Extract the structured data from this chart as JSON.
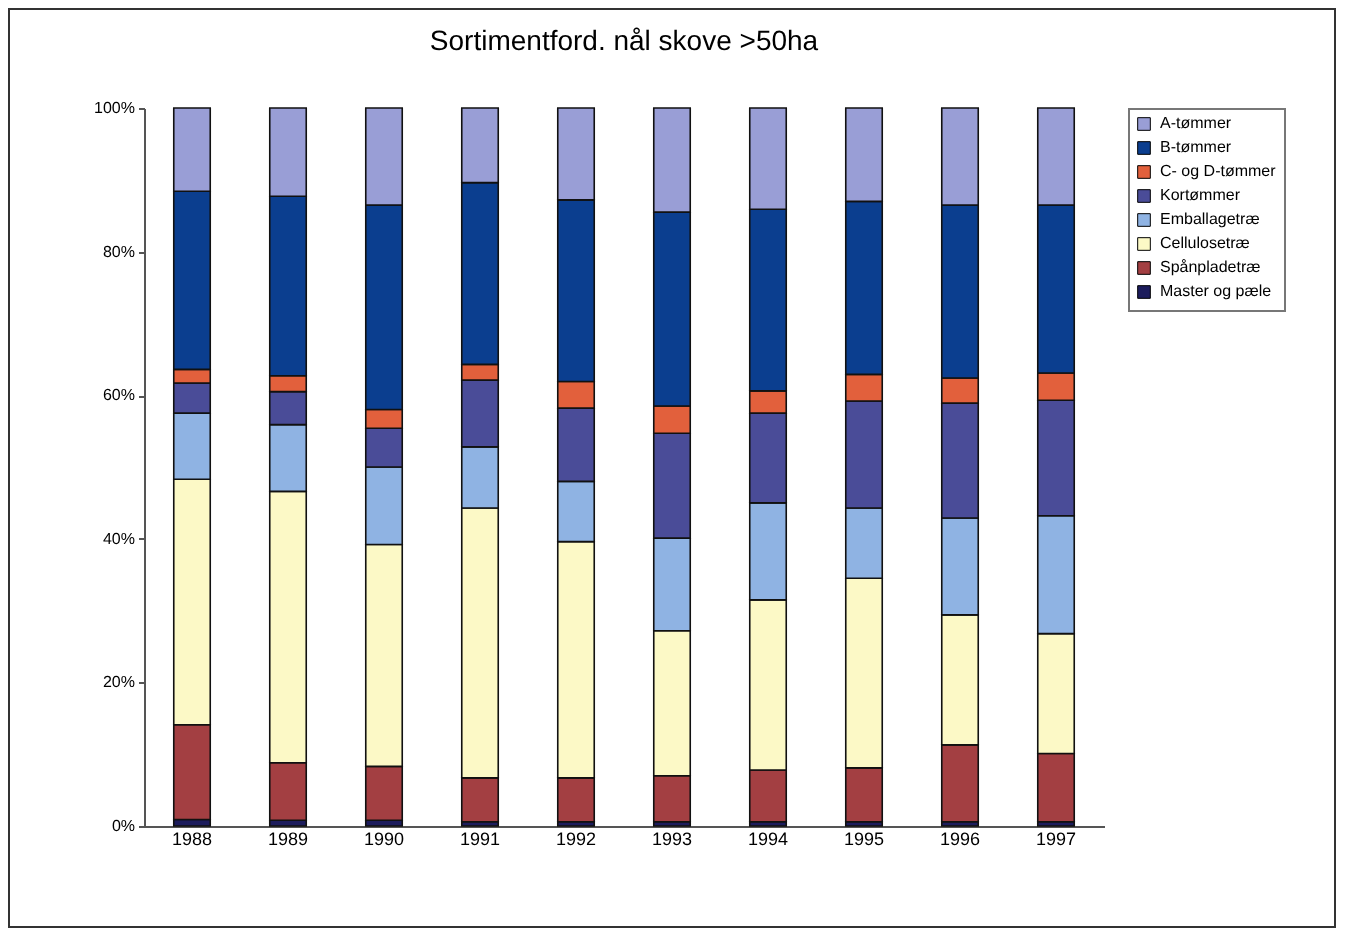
{
  "chart_data": {
    "type": "bar",
    "title": "Sortimentford. nål skove >50ha",
    "stacked": true,
    "legend": "right",
    "categories": [
      "1988",
      "1989",
      "1990",
      "1991",
      "1992",
      "1993",
      "1994",
      "1995",
      "1996",
      "1997"
    ],
    "ylim": [
      0,
      100
    ],
    "yticks": [
      {
        "value": 0,
        "label": "0%"
      },
      {
        "value": 20,
        "label": "20%"
      },
      {
        "value": 40,
        "label": "40%"
      },
      {
        "value": 60,
        "label": "60%"
      },
      {
        "value": 80,
        "label": "80%"
      },
      {
        "value": 100,
        "label": "100%"
      }
    ],
    "series": [
      {
        "name": "Master og pæle",
        "color": "#1c1c5c",
        "values": [
          0.9,
          0.8,
          0.8,
          0.6,
          0.6,
          0.6,
          0.6,
          0.6,
          0.6,
          0.6
        ]
      },
      {
        "name": "Spånpladetræ",
        "color": "#a33f42",
        "values": [
          13.2,
          8.0,
          7.5,
          6.1,
          6.1,
          6.4,
          7.2,
          7.5,
          10.7,
          9.5
        ]
      },
      {
        "name": "Cellulosetræ",
        "color": "#fcf9c6",
        "values": [
          34.2,
          37.8,
          30.9,
          37.6,
          32.9,
          20.2,
          23.7,
          26.4,
          18.1,
          16.7
        ]
      },
      {
        "name": "Emballagetræ",
        "color": "#8fb3e3",
        "values": [
          9.2,
          9.3,
          10.8,
          8.5,
          8.4,
          12.9,
          13.5,
          9.8,
          13.5,
          16.4
        ]
      },
      {
        "name": "Kortømmer",
        "color": "#4a4c98",
        "values": [
          4.2,
          4.6,
          5.4,
          9.3,
          10.2,
          14.6,
          12.5,
          14.9,
          16.0,
          16.1
        ]
      },
      {
        "name": "C- og D-tømmer",
        "color": "#e2603c",
        "values": [
          1.9,
          2.2,
          2.6,
          2.2,
          3.7,
          3.8,
          3.1,
          3.7,
          3.5,
          3.8
        ]
      },
      {
        "name": "B-tømmer",
        "color": "#0b3e8f",
        "values": [
          24.8,
          25.0,
          28.5,
          25.3,
          25.3,
          27.0,
          25.3,
          24.1,
          24.1,
          23.4
        ]
      },
      {
        "name": "A-tømmer",
        "color": "#999ed6",
        "values": [
          11.6,
          12.3,
          13.5,
          10.4,
          12.8,
          14.5,
          14.1,
          13.0,
          13.5,
          13.5
        ]
      }
    ]
  }
}
